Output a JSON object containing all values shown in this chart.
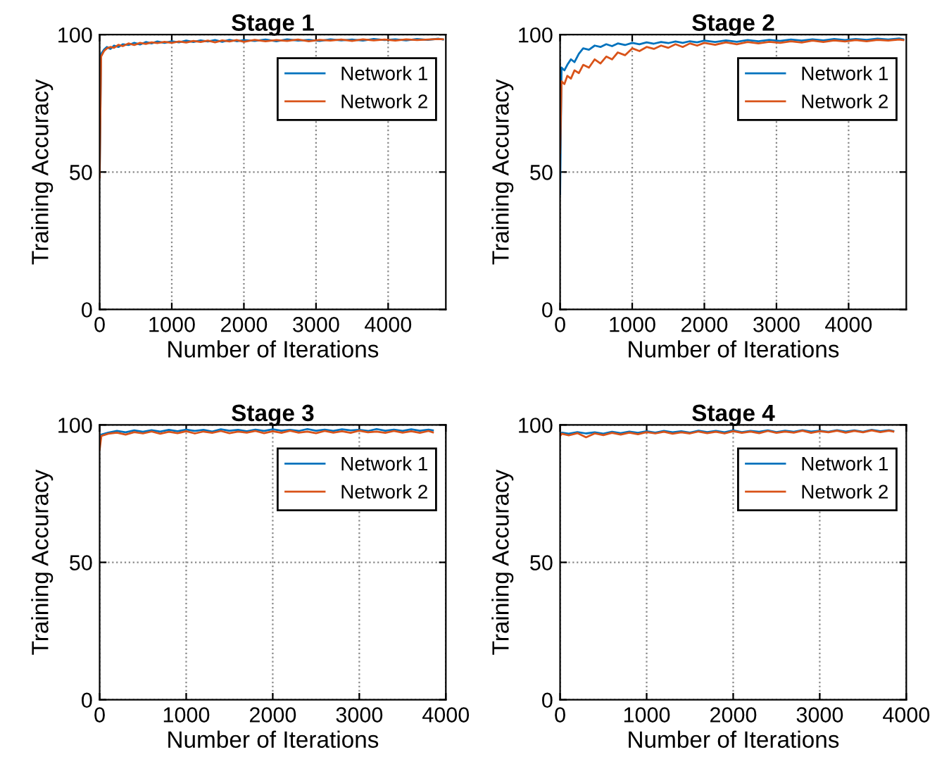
{
  "chart_data": [
    {
      "type": "line",
      "title": "Stage 1",
      "xlabel": "Number of Iterations",
      "ylabel": "Training Accuracy",
      "xlim": [
        0,
        4800
      ],
      "xticks": [
        0,
        1000,
        2000,
        3000,
        4000
      ],
      "ylim": [
        0,
        100
      ],
      "yticks": [
        0,
        50,
        100
      ],
      "grid": true,
      "legend": "top right",
      "x": [
        0,
        20,
        60,
        100,
        150,
        200,
        260,
        320,
        400,
        480,
        560,
        640,
        720,
        800,
        900,
        1000,
        1100,
        1200,
        1300,
        1400,
        1500,
        1600,
        1700,
        1800,
        1900,
        2000,
        2150,
        2300,
        2450,
        2600,
        2750,
        2900,
        3050,
        3200,
        3350,
        3500,
        3650,
        3800,
        3950,
        4100,
        4250,
        4400,
        4550,
        4700,
        4760
      ],
      "series": [
        {
          "name": "Network 1",
          "color": "#0072bd",
          "values": [
            50,
            93,
            94.5,
            95.5,
            94.8,
            96,
            95.5,
            96.5,
            96.2,
            97,
            96.4,
            97.3,
            96.8,
            97.5,
            97,
            97.6,
            97.2,
            97.8,
            97.3,
            97.9,
            97.5,
            98,
            97.4,
            98.1,
            97.6,
            98,
            97.7,
            98.2,
            97.6,
            98.3,
            97.8,
            98.1,
            97.7,
            98.3,
            97.9,
            98.2,
            97.8,
            98.4,
            98,
            98.3,
            97.9,
            98.4,
            98.1,
            98.5,
            98.2
          ]
        },
        {
          "name": "Network 2",
          "color": "#d95319",
          "values": [
            48,
            92,
            94,
            95,
            95.5,
            95.2,
            96.3,
            95.8,
            96.8,
            96.2,
            97,
            96.6,
            97.2,
            96.9,
            97.4,
            97,
            97.5,
            97.1,
            97.7,
            97.3,
            97.8,
            97.2,
            97.9,
            97.5,
            98,
            97.4,
            98.1,
            97.6,
            98,
            97.7,
            98.2,
            97.6,
            98.1,
            97.8,
            98.2,
            97.7,
            98.3,
            97.9,
            98.2,
            97.8,
            98.3,
            98,
            98.2,
            98.4,
            98.3
          ]
        }
      ]
    },
    {
      "type": "line",
      "title": "Stage 2",
      "xlabel": "Number of Iterations",
      "ylabel": "Training Accuracy",
      "xlim": [
        0,
        4800
      ],
      "xticks": [
        0,
        1000,
        2000,
        3000,
        4000
      ],
      "ylim": [
        0,
        100
      ],
      "yticks": [
        0,
        50,
        100
      ],
      "grid": true,
      "legend": "top right",
      "x": [
        0,
        20,
        60,
        100,
        150,
        200,
        260,
        320,
        400,
        480,
        560,
        640,
        720,
        800,
        900,
        1000,
        1100,
        1200,
        1300,
        1400,
        1500,
        1600,
        1700,
        1800,
        1900,
        2000,
        2150,
        2300,
        2450,
        2600,
        2750,
        2900,
        3050,
        3200,
        3350,
        3500,
        3650,
        3800,
        3950,
        4100,
        4250,
        4400,
        4550,
        4700,
        4760
      ],
      "series": [
        {
          "name": "Network 1",
          "color": "#0072bd",
          "values": [
            42,
            88,
            87,
            89,
            91,
            90,
            93,
            95,
            94.5,
            96,
            95.5,
            96.5,
            95.8,
            96.8,
            96.2,
            97,
            96.5,
            97.2,
            96.7,
            97.3,
            96.9,
            97.5,
            97,
            97.6,
            97.2,
            97.8,
            97.3,
            97.9,
            97.4,
            98,
            97.6,
            98.1,
            97.7,
            98.2,
            97.8,
            98.3,
            97.9,
            98.4,
            98,
            98.4,
            98.1,
            98.5,
            98.2,
            98.6,
            98.3
          ]
        },
        {
          "name": "Network 2",
          "color": "#d95319",
          "values": [
            57,
            83,
            82,
            85,
            84,
            87,
            86,
            89,
            88,
            91,
            89.5,
            92,
            91,
            93.5,
            92.5,
            95,
            94,
            95.5,
            94.8,
            96,
            95.2,
            96.5,
            95.5,
            96.8,
            96,
            97,
            96.3,
            97.2,
            96.5,
            97.3,
            96.8,
            97.4,
            97,
            97.6,
            97.1,
            97.8,
            97.3,
            97.9,
            97.5,
            98,
            97.6,
            98.1,
            97.8,
            98.2,
            98
          ]
        }
      ]
    },
    {
      "type": "line",
      "title": "Stage 3",
      "xlabel": "Number of Iterations",
      "ylabel": "Training Accuracy",
      "xlim": [
        0,
        4000
      ],
      "xticks": [
        0,
        1000,
        2000,
        3000,
        4000
      ],
      "ylim": [
        0,
        100
      ],
      "yticks": [
        0,
        50,
        100
      ],
      "grid": true,
      "legend": "top right",
      "x": [
        0,
        20,
        100,
        200,
        300,
        400,
        500,
        600,
        700,
        800,
        900,
        1000,
        1100,
        1200,
        1300,
        1400,
        1500,
        1600,
        1700,
        1800,
        1900,
        2000,
        2100,
        2200,
        2300,
        2400,
        2500,
        2600,
        2700,
        2800,
        2900,
        3000,
        3100,
        3200,
        3300,
        3400,
        3500,
        3600,
        3700,
        3800,
        3850
      ],
      "series": [
        {
          "name": "Network 1",
          "color": "#0072bd",
          "values": [
            93,
            96.5,
            97.2,
            97.8,
            97.3,
            98,
            97.5,
            98.1,
            97.6,
            98.2,
            97.7,
            98.3,
            97.8,
            98.2,
            97.6,
            98.4,
            97.9,
            98.2,
            97.7,
            98.3,
            97.8,
            98.4,
            97.9,
            98.2,
            97.8,
            98.5,
            97.9,
            98.3,
            97.8,
            98.4,
            98,
            98.2,
            97.8,
            98.5,
            97.9,
            98.3,
            97.8,
            98.4,
            97.9,
            98.3,
            98
          ]
        },
        {
          "name": "Network 2",
          "color": "#d95319",
          "values": [
            91,
            96,
            96.8,
            97.2,
            96.5,
            97.4,
            96.9,
            97.6,
            96.8,
            97.5,
            97,
            97.7,
            96.9,
            97.6,
            97.1,
            97.8,
            97,
            97.6,
            97.2,
            97.8,
            97,
            97.7,
            97.1,
            97.9,
            97.2,
            97.6,
            97,
            97.8,
            97.2,
            97.7,
            97.1,
            97.9,
            97.3,
            97.6,
            97.1,
            97.8,
            97.2,
            97.7,
            97.1,
            97.8,
            97.3
          ]
        }
      ]
    },
    {
      "type": "line",
      "title": "Stage 4",
      "xlabel": "Number of Iterations",
      "ylabel": "Training Accuracy",
      "xlim": [
        0,
        4000
      ],
      "xticks": [
        0,
        1000,
        2000,
        3000,
        4000
      ],
      "ylim": [
        0,
        100
      ],
      "yticks": [
        0,
        50,
        100
      ],
      "grid": true,
      "legend": "top right",
      "x": [
        0,
        20,
        100,
        200,
        300,
        400,
        500,
        600,
        700,
        800,
        900,
        1000,
        1100,
        1200,
        1300,
        1400,
        1500,
        1600,
        1700,
        1800,
        1900,
        2000,
        2100,
        2200,
        2300,
        2400,
        2500,
        2600,
        2700,
        2800,
        2900,
        3000,
        3100,
        3200,
        3300,
        3400,
        3500,
        3600,
        3700,
        3800,
        3850
      ],
      "series": [
        {
          "name": "Network 1",
          "color": "#0072bd",
          "values": [
            96.5,
            97.2,
            96.8,
            97.4,
            96.9,
            97.3,
            96.8,
            97.5,
            97,
            97.6,
            97.1,
            97.7,
            97.2,
            97.8,
            97.3,
            97.7,
            97.2,
            97.9,
            97.4,
            97.8,
            97.3,
            98,
            97.4,
            97.8,
            97.5,
            98,
            97.4,
            97.9,
            97.5,
            98.1,
            97.6,
            97.9,
            97.5,
            98.1,
            97.6,
            98,
            97.5,
            98.2,
            97.7,
            98.1,
            97.8
          ]
        },
        {
          "name": "Network 2",
          "color": "#d95319",
          "values": [
            96,
            96.8,
            96.2,
            97,
            95.5,
            96.9,
            96.3,
            97.1,
            96.5,
            97.2,
            96.6,
            97.4,
            96.9,
            97.5,
            96.8,
            97.3,
            96.9,
            97.6,
            97,
            97.5,
            96.9,
            97.7,
            97.1,
            97.6,
            97,
            97.8,
            97.1,
            97.6,
            97.2,
            97.9,
            97.1,
            97.7,
            97.3,
            97.9,
            97.2,
            97.8,
            97.3,
            98,
            97.4,
            97.9,
            97.6
          ]
        }
      ]
    }
  ]
}
